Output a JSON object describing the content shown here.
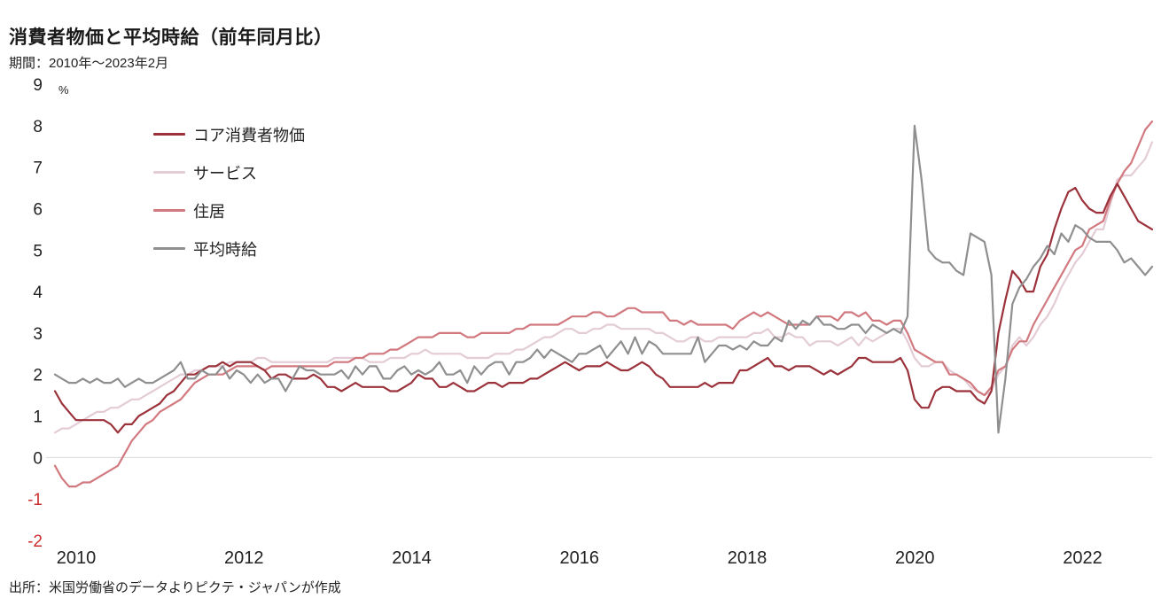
{
  "title": "消費者物価と平均時給（前年同月比）",
  "subtitle": "期間：2010年～2023年2月",
  "source": "出所：米国労働省のデータよりピクテ・ジャパンが作成",
  "unit_label": "%",
  "chart_data": {
    "type": "line",
    "title": "消費者物価と平均時給（前年同月比）",
    "period": "2010年～2023年2月",
    "x_frequency": "monthly",
    "x_domain": [
      2010,
      2023.0833
    ],
    "x_ticks": [
      2010,
      2012,
      2014,
      2016,
      2018,
      2020,
      2022
    ],
    "ylim": [
      -2,
      9
    ],
    "y_ticks": [
      9,
      8,
      7,
      6,
      5,
      4,
      3,
      2,
      1,
      0,
      -1,
      -2
    ],
    "tick_color": "#222222",
    "negative_tick_color": "#cc2f2f",
    "zero_line_color": "#d9d9d9",
    "grid": "zero-line-only",
    "legend_position": "top-left-inside",
    "series": [
      {
        "key": "core_cpi",
        "name": "コア消費者物価",
        "color": "#9b323b",
        "width": 2.2,
        "values": [
          1.6,
          1.3,
          1.1,
          0.9,
          0.9,
          0.9,
          0.9,
          0.9,
          0.8,
          0.6,
          0.8,
          0.8,
          1.0,
          1.1,
          1.2,
          1.3,
          1.5,
          1.6,
          1.8,
          2.0,
          2.0,
          2.1,
          2.2,
          2.2,
          2.3,
          2.2,
          2.3,
          2.3,
          2.3,
          2.2,
          2.1,
          1.9,
          2.0,
          2.0,
          1.9,
          1.9,
          1.9,
          2.0,
          1.9,
          1.7,
          1.7,
          1.6,
          1.7,
          1.8,
          1.7,
          1.7,
          1.7,
          1.7,
          1.6,
          1.6,
          1.7,
          1.8,
          2.0,
          1.9,
          1.9,
          1.7,
          1.7,
          1.8,
          1.7,
          1.6,
          1.6,
          1.7,
          1.8,
          1.8,
          1.7,
          1.8,
          1.8,
          1.8,
          1.9,
          1.9,
          2.0,
          2.1,
          2.2,
          2.3,
          2.2,
          2.1,
          2.2,
          2.2,
          2.2,
          2.3,
          2.2,
          2.1,
          2.1,
          2.2,
          2.3,
          2.2,
          2.0,
          1.9,
          1.7,
          1.7,
          1.7,
          1.7,
          1.7,
          1.8,
          1.7,
          1.8,
          1.8,
          1.8,
          2.1,
          2.1,
          2.2,
          2.3,
          2.4,
          2.2,
          2.2,
          2.1,
          2.2,
          2.2,
          2.2,
          2.1,
          2.0,
          2.1,
          2.0,
          2.1,
          2.2,
          2.4,
          2.4,
          2.3,
          2.3,
          2.3,
          2.3,
          2.4,
          2.1,
          1.4,
          1.2,
          1.2,
          1.6,
          1.7,
          1.7,
          1.6,
          1.6,
          1.6,
          1.4,
          1.3,
          1.6,
          3.0,
          3.8,
          4.5,
          4.3,
          4.0,
          4.0,
          4.6,
          4.9,
          5.5,
          6.0,
          6.4,
          6.5,
          6.2,
          6.0,
          5.9,
          5.9,
          6.3,
          6.6,
          6.3,
          6.0,
          5.7,
          5.6,
          5.5
        ]
      },
      {
        "key": "services",
        "name": "サービス",
        "color": "#e3ccd6",
        "width": 2.2,
        "values": [
          0.6,
          0.7,
          0.7,
          0.8,
          0.9,
          1.0,
          1.1,
          1.1,
          1.2,
          1.2,
          1.3,
          1.4,
          1.4,
          1.5,
          1.6,
          1.7,
          1.8,
          1.9,
          2.0,
          2.0,
          2.1,
          2.1,
          2.2,
          2.2,
          2.2,
          2.3,
          2.3,
          2.3,
          2.3,
          2.4,
          2.4,
          2.3,
          2.3,
          2.3,
          2.3,
          2.3,
          2.3,
          2.3,
          2.3,
          2.3,
          2.4,
          2.4,
          2.4,
          2.4,
          2.4,
          2.3,
          2.3,
          2.3,
          2.4,
          2.4,
          2.4,
          2.5,
          2.5,
          2.6,
          2.5,
          2.5,
          2.5,
          2.5,
          2.5,
          2.4,
          2.4,
          2.4,
          2.4,
          2.5,
          2.5,
          2.5,
          2.6,
          2.6,
          2.7,
          2.8,
          2.9,
          2.9,
          3.0,
          3.1,
          3.1,
          3.0,
          3.0,
          3.1,
          3.1,
          3.2,
          3.2,
          3.1,
          3.1,
          3.1,
          3.1,
          3.1,
          3.0,
          3.0,
          2.9,
          2.8,
          2.8,
          2.9,
          2.9,
          2.8,
          2.8,
          2.9,
          2.9,
          2.9,
          2.9,
          2.9,
          3.0,
          3.0,
          3.1,
          2.9,
          2.9,
          3.0,
          2.9,
          2.9,
          2.7,
          2.8,
          2.8,
          2.8,
          2.7,
          2.8,
          2.9,
          2.7,
          2.9,
          2.8,
          2.9,
          3.0,
          3.1,
          3.1,
          2.8,
          2.4,
          2.2,
          2.2,
          2.3,
          2.3,
          2.1,
          2.0,
          1.9,
          1.7,
          1.6,
          1.5,
          1.6,
          2.0,
          2.2,
          2.7,
          2.9,
          2.7,
          2.9,
          3.2,
          3.4,
          3.7,
          4.1,
          4.4,
          4.7,
          4.9,
          5.2,
          5.5,
          5.5,
          6.1,
          6.7,
          6.8,
          6.8,
          7.0,
          7.2,
          7.6
        ]
      },
      {
        "key": "housing",
        "name": "住居",
        "color": "#d1797f",
        "width": 2.2,
        "values": [
          -0.2,
          -0.5,
          -0.7,
          -0.7,
          -0.6,
          -0.6,
          -0.5,
          -0.4,
          -0.3,
          -0.2,
          0.1,
          0.4,
          0.6,
          0.8,
          0.9,
          1.1,
          1.2,
          1.3,
          1.4,
          1.6,
          1.8,
          1.9,
          2.0,
          2.0,
          2.0,
          2.1,
          2.2,
          2.2,
          2.2,
          2.2,
          2.1,
          2.2,
          2.2,
          2.2,
          2.2,
          2.2,
          2.2,
          2.2,
          2.2,
          2.2,
          2.3,
          2.3,
          2.3,
          2.4,
          2.4,
          2.5,
          2.5,
          2.5,
          2.6,
          2.6,
          2.7,
          2.8,
          2.9,
          2.9,
          2.9,
          3.0,
          3.0,
          3.0,
          3.0,
          2.9,
          2.9,
          3.0,
          3.0,
          3.0,
          3.0,
          3.0,
          3.1,
          3.1,
          3.2,
          3.2,
          3.2,
          3.2,
          3.2,
          3.3,
          3.4,
          3.4,
          3.4,
          3.5,
          3.5,
          3.4,
          3.4,
          3.5,
          3.6,
          3.6,
          3.5,
          3.5,
          3.5,
          3.5,
          3.3,
          3.3,
          3.2,
          3.3,
          3.2,
          3.2,
          3.2,
          3.2,
          3.2,
          3.1,
          3.3,
          3.4,
          3.5,
          3.4,
          3.5,
          3.4,
          3.3,
          3.2,
          3.2,
          3.2,
          3.2,
          3.4,
          3.4,
          3.4,
          3.3,
          3.5,
          3.5,
          3.4,
          3.5,
          3.3,
          3.3,
          3.2,
          3.3,
          3.3,
          3.0,
          2.6,
          2.5,
          2.4,
          2.3,
          2.3,
          2.0,
          2.0,
          1.9,
          1.8,
          1.6,
          1.5,
          1.7,
          2.1,
          2.2,
          2.6,
          2.8,
          2.8,
          3.2,
          3.5,
          3.8,
          4.1,
          4.4,
          4.7,
          5.0,
          5.1,
          5.5,
          5.6,
          5.7,
          6.2,
          6.6,
          6.9,
          7.1,
          7.5,
          7.9,
          8.1
        ]
      },
      {
        "key": "avg_hourly_wage",
        "name": "平均時給",
        "color": "#8f8f8f",
        "width": 2.2,
        "values": [
          2.0,
          1.9,
          1.8,
          1.8,
          1.9,
          1.8,
          1.9,
          1.8,
          1.8,
          1.9,
          1.7,
          1.8,
          1.9,
          1.8,
          1.8,
          1.9,
          2.0,
          2.1,
          2.3,
          1.9,
          1.9,
          2.1,
          2.0,
          2.0,
          2.2,
          1.9,
          2.1,
          2.0,
          1.8,
          2.0,
          1.8,
          1.9,
          1.9,
          1.6,
          1.9,
          2.2,
          2.1,
          2.1,
          2.0,
          2.0,
          2.0,
          2.1,
          1.9,
          2.2,
          2.0,
          2.2,
          2.2,
          1.9,
          1.9,
          2.1,
          2.2,
          2.0,
          2.1,
          2.0,
          2.1,
          2.3,
          2.0,
          2.0,
          2.1,
          1.8,
          2.2,
          2.0,
          2.2,
          2.3,
          2.3,
          2.0,
          2.3,
          2.3,
          2.4,
          2.6,
          2.4,
          2.6,
          2.5,
          2.4,
          2.3,
          2.5,
          2.5,
          2.6,
          2.7,
          2.4,
          2.6,
          2.8,
          2.5,
          2.9,
          2.5,
          2.8,
          2.7,
          2.5,
          2.5,
          2.5,
          2.5,
          2.5,
          2.9,
          2.3,
          2.5,
          2.7,
          2.7,
          2.6,
          2.7,
          2.6,
          2.8,
          2.7,
          2.7,
          2.9,
          2.8,
          3.3,
          3.1,
          3.3,
          3.2,
          3.4,
          3.2,
          3.2,
          3.1,
          3.1,
          3.2,
          3.2,
          3.0,
          3.2,
          3.1,
          3.0,
          3.1,
          3.0,
          3.4,
          8.0,
          6.7,
          5.0,
          4.8,
          4.7,
          4.7,
          4.5,
          4.4,
          5.4,
          5.3,
          5.2,
          4.4,
          0.6,
          1.9,
          3.7,
          4.1,
          4.3,
          4.6,
          4.8,
          5.1,
          4.9,
          5.4,
          5.2,
          5.6,
          5.5,
          5.3,
          5.2,
          5.2,
          5.2,
          5.0,
          4.7,
          4.8,
          4.6,
          4.4,
          4.6
        ]
      }
    ]
  }
}
